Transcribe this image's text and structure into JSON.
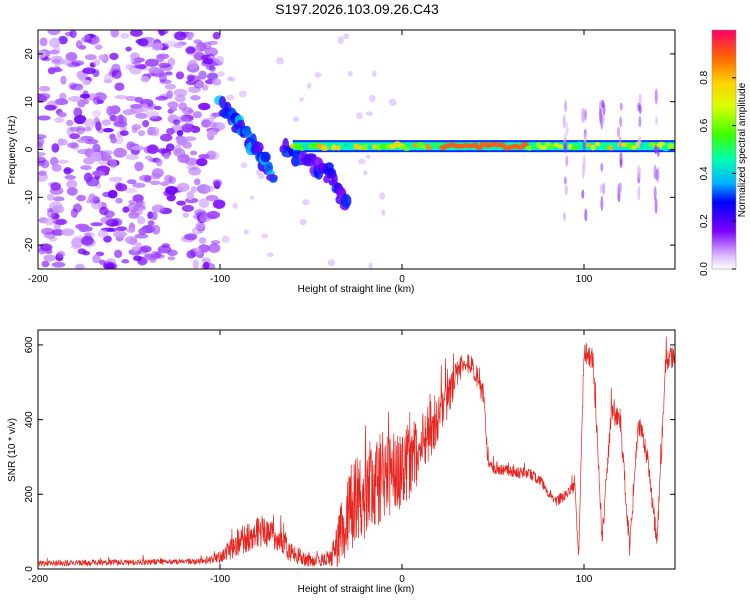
{
  "title": "S197.2026.103.09.26.C43",
  "chart_data": [
    {
      "type": "heatmap",
      "name": "spectrogram",
      "xlabel": "Height of straight line (km)",
      "ylabel": "Frequency (Hz)",
      "xlim": [
        -200,
        150
      ],
      "ylim": [
        -25,
        25
      ],
      "xticks": [
        -200,
        -100,
        0,
        100
      ],
      "yticks": [
        -20,
        -10,
        0,
        10,
        20
      ],
      "colorbar": {
        "label": "Normalized spectral amplitude",
        "range": [
          0,
          1
        ],
        "ticks": [
          0.0,
          0.2,
          0.4,
          0.6,
          0.8
        ]
      },
      "features": [
        {
          "name": "noise-region",
          "x_range": [
            -200,
            -100
          ],
          "f_range": [
            -25,
            25
          ],
          "amplitude": 0.12
        },
        {
          "name": "descending-track-1",
          "x": [
            -100,
            -90,
            -80,
            -70
          ],
          "f": [
            10,
            5,
            0,
            -6
          ],
          "amplitude": 0.28
        },
        {
          "name": "descending-track-2",
          "x": [
            -65,
            -50,
            -40,
            -30
          ],
          "f": [
            0,
            -3,
            -5,
            -12
          ],
          "amplitude": 0.22
        },
        {
          "name": "zero-frequency-line",
          "x_range": [
            -60,
            150
          ],
          "f": 0.7,
          "amplitude": 0.9
        },
        {
          "name": "vertical-streaks",
          "x": [
            90,
            100,
            110,
            120,
            130,
            140
          ],
          "f_range": [
            -15,
            12
          ],
          "amplitude": 0.1
        }
      ]
    },
    {
      "type": "line",
      "name": "snr",
      "xlabel": "Height of straight line (km)",
      "ylabel": "SNR (10 * v/v)",
      "xlim": [
        -200,
        150
      ],
      "ylim": [
        0,
        640
      ],
      "xticks": [
        -200,
        -100,
        0,
        100
      ],
      "yticks": [
        0,
        200,
        400,
        600
      ],
      "color": "#e8241e",
      "envelope": {
        "x": [
          -200,
          -150,
          -110,
          -100,
          -90,
          -80,
          -70,
          -60,
          -50,
          -40,
          -35,
          -30,
          -25,
          -20,
          -15,
          -10,
          -5,
          0,
          5,
          10,
          15,
          20,
          25,
          30,
          35,
          40,
          45,
          47,
          50,
          55,
          60,
          65,
          70,
          75,
          80,
          85,
          90,
          95,
          97,
          100,
          105,
          110,
          115,
          120,
          125,
          130,
          135,
          140,
          145,
          150
        ],
        "base": [
          15,
          18,
          20,
          30,
          70,
          100,
          90,
          40,
          20,
          30,
          60,
          150,
          180,
          220,
          220,
          250,
          260,
          270,
          290,
          330,
          370,
          400,
          450,
          520,
          560,
          530,
          460,
          280,
          270,
          265,
          262,
          258,
          255,
          240,
          210,
          180,
          200,
          220,
          30,
          580,
          560,
          80,
          420,
          400,
          60,
          390,
          300,
          70,
          560,
          570
        ],
        "jitter": [
          8,
          8,
          8,
          15,
          40,
          40,
          40,
          25,
          15,
          20,
          80,
          120,
          120,
          140,
          130,
          120,
          110,
          110,
          100,
          90,
          80,
          60,
          50,
          40,
          30,
          30,
          30,
          20,
          15,
          15,
          15,
          15,
          15,
          15,
          15,
          15,
          15,
          15,
          15,
          30,
          30,
          30,
          30,
          30,
          30,
          30,
          30,
          30,
          30,
          30
        ]
      }
    }
  ]
}
